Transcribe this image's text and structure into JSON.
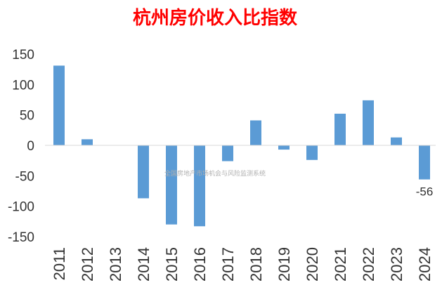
{
  "chart_data": {
    "type": "bar",
    "title": "杭州房价收入比指数",
    "categories": [
      "2011",
      "2012",
      "2013",
      "2014",
      "2015",
      "2016",
      "2017",
      "2018",
      "2019",
      "2020",
      "2021",
      "2022",
      "2023",
      "2024"
    ],
    "values": [
      131,
      10,
      0,
      -87,
      -130,
      -133,
      -26,
      41,
      -7,
      -24,
      52,
      74,
      13,
      -56
    ],
    "yticks": [
      "150",
      "100",
      "50",
      "0",
      "-50",
      "-100",
      "-150"
    ],
    "ylim": [
      -150,
      150
    ],
    "data_labels": [
      {
        "index": 13,
        "text": "-56"
      }
    ],
    "bar_color": "#5b9bd5",
    "grid": false,
    "legend": "none"
  },
  "watermark": "全国房地产市场机会与风险监测系统"
}
